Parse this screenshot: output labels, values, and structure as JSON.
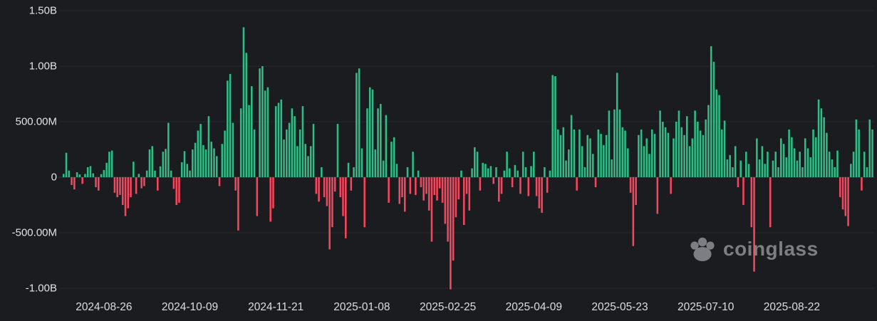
{
  "watermark": {
    "text": "coinglass",
    "icon": "coinglass-paw-icon",
    "color": "#8E9095"
  },
  "chart_data": {
    "type": "bar",
    "title": "",
    "values_unit": "millions USD",
    "grid": true,
    "legend": false,
    "y_axis": {
      "max": 1500,
      "min": -1000
    },
    "y_ticks": [
      {
        "label": "1.50B",
        "value": 1500
      },
      {
        "label": "1.00B",
        "value": 1000
      },
      {
        "label": "500.00M",
        "value": 500
      },
      {
        "label": "0",
        "value": 0
      },
      {
        "label": "-500.00M",
        "value": -500
      },
      {
        "label": "-1.00B",
        "value": -1000
      }
    ],
    "x_tick_labels": [
      "2024-08-26",
      "2024-10-09",
      "2024-11-21",
      "2025-01-08",
      "2025-02-25",
      "2025-04-09",
      "2025-05-23",
      "2025-07-10",
      "2025-08-22"
    ],
    "x_tick_indices": [
      15,
      47,
      79,
      111,
      143,
      175,
      207,
      239,
      271
    ],
    "values_millions": [
      30,
      220,
      60,
      -70,
      -110,
      45,
      25,
      -60,
      30,
      90,
      100,
      35,
      -90,
      -120,
      28,
      65,
      130,
      230,
      240,
      -140,
      -180,
      -160,
      -250,
      -350,
      -280,
      -180,
      140,
      -150,
      30,
      -100,
      -80,
      60,
      250,
      280,
      60,
      -120,
      98,
      230,
      255,
      490,
      60,
      -105,
      -250,
      -230,
      135,
      235,
      120,
      60,
      250,
      310,
      420,
      480,
      290,
      250,
      550,
      320,
      260,
      190,
      -80,
      300,
      420,
      870,
      930,
      490,
      -120,
      -480,
      620,
      1350,
      1120,
      650,
      820,
      430,
      -350,
      980,
      1000,
      780,
      810,
      -400,
      -280,
      640,
      670,
      700,
      340,
      430,
      490,
      620,
      550,
      280,
      430,
      640,
      300,
      190,
      280,
      480,
      -150,
      -220,
      90,
      -180,
      -260,
      -650,
      -450,
      -130,
      480,
      -180,
      -350,
      -550,
      130,
      -120,
      90,
      940,
      980,
      260,
      -450,
      620,
      810,
      790,
      250,
      620,
      660,
      150,
      560,
      -230,
      320,
      360,
      120,
      -240,
      -180,
      -310,
      90,
      -150,
      230,
      -160,
      60,
      -90,
      -210,
      -150,
      -300,
      -580,
      -160,
      -210,
      -100,
      -230,
      -420,
      -580,
      -1010,
      -750,
      -360,
      -200,
      60,
      -430,
      -150,
      -300,
      80,
      270,
      230,
      -120,
      130,
      120,
      80,
      100,
      -60,
      90,
      -220,
      -150,
      60,
      230,
      80,
      -90,
      110,
      60,
      -150,
      230,
      90,
      -170,
      100,
      230,
      -170,
      -280,
      -320,
      90,
      -140,
      60,
      920,
      910,
      430,
      380,
      450,
      150,
      250,
      560,
      430,
      -120,
      430,
      280,
      90,
      380,
      350,
      210,
      -90,
      430,
      390,
      290,
      380,
      600,
      160,
      610,
      940,
      610,
      450,
      420,
      260,
      -140,
      -620,
      -250,
      380,
      430,
      280,
      350,
      210,
      430,
      390,
      -330,
      600,
      500,
      450,
      400,
      -150,
      350,
      500,
      600,
      450,
      380,
      550,
      280,
      350,
      600,
      500,
      420,
      380,
      520,
      650,
      1180,
      1040,
      790,
      740,
      430,
      510,
      160,
      200,
      90,
      280,
      -90,
      150,
      -250,
      230,
      120,
      -450,
      -850,
      350,
      160,
      280,
      120,
      230,
      -450,
      150,
      230,
      90,
      350,
      300,
      180,
      430,
      360,
      260,
      150,
      230,
      90,
      350,
      260,
      180,
      430,
      360,
      700,
      620,
      540,
      400,
      230,
      160,
      90,
      240,
      -180,
      -290,
      -350,
      -440,
      120,
      230,
      520,
      430,
      -120,
      230,
      90,
      520,
      430
    ],
    "colors": {
      "positive": "#2EBD85",
      "negative": "#F6465D",
      "background": "#1B1C20",
      "grid": "#26282d",
      "zero_line": "#383a41",
      "axis_text": "#E2E3E6"
    }
  }
}
